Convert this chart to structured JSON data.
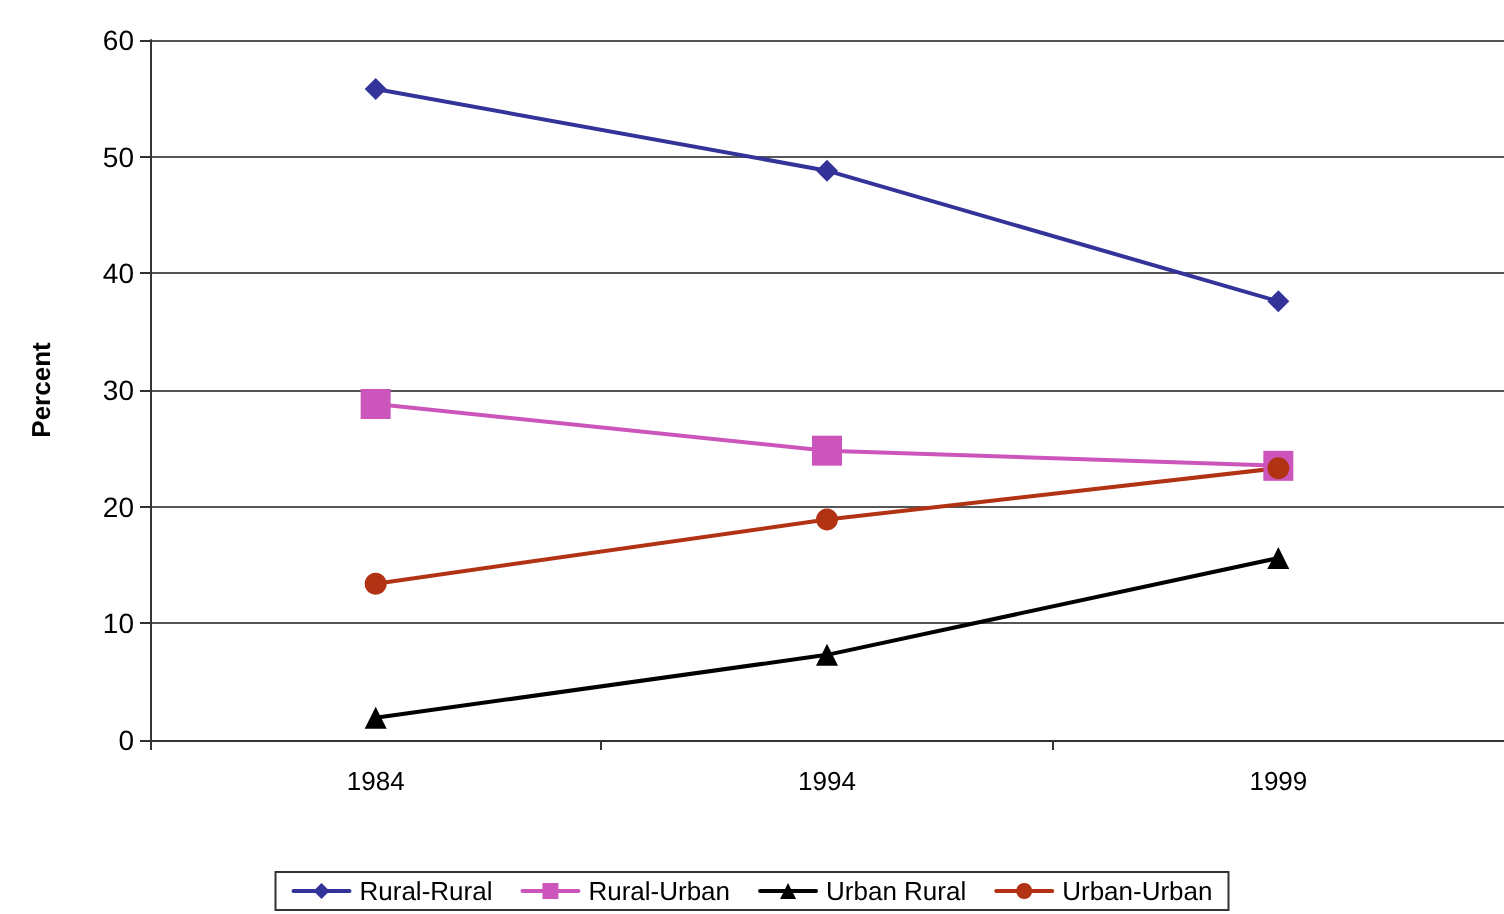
{
  "chart_data": {
    "type": "line",
    "ylabel": "Percent",
    "categories": [
      "1984",
      "1994",
      "1999"
    ],
    "series": [
      {
        "name": "Rural-Rural",
        "color": "#333399",
        "marker": "diamond",
        "values": [
          55.8,
          48.8,
          37.6
        ]
      },
      {
        "name": "Rural-Urban",
        "color": "#cc55bb",
        "marker": "square",
        "values": [
          28.8,
          24.8,
          23.5
        ]
      },
      {
        "name": "Urban Rural",
        "color": "#000000",
        "marker": "triangle",
        "values": [
          1.9,
          7.3,
          15.6
        ]
      },
      {
        "name": "Urban-Urban",
        "color": "#b23214",
        "marker": "circle",
        "values": [
          13.4,
          18.9,
          23.3
        ]
      }
    ],
    "ylim": [
      0,
      60
    ],
    "yticks": [
      0,
      10,
      20,
      30,
      40,
      50,
      60
    ],
    "grid": "y",
    "legend": "bottom",
    "line_style": "solid"
  }
}
